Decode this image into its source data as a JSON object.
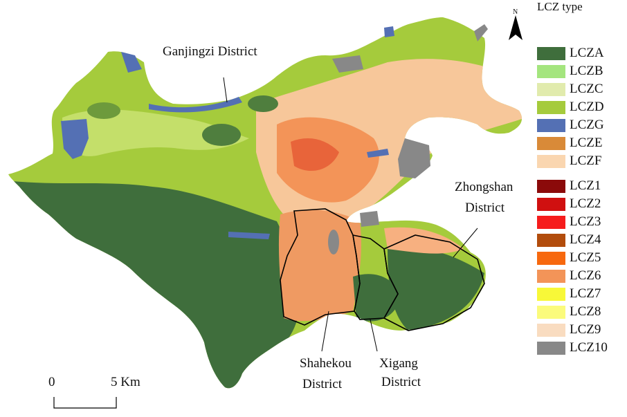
{
  "legend": {
    "title": "LCZ type",
    "items": [
      {
        "label": "LCZA",
        "color": "#3f6e3c"
      },
      {
        "label": "LCZB",
        "color": "#a4e57e"
      },
      {
        "label": "LCZC",
        "color": "#e1ebad"
      },
      {
        "label": "LCZD",
        "color": "#a5cb3c"
      },
      {
        "label": "LCZG",
        "color": "#5470b4"
      },
      {
        "label": "LCZE",
        "color": "#d98a38"
      },
      {
        "label": "LCZF",
        "color": "#fad6b0"
      },
      {
        "label": "LCZ1",
        "color": "#8b0a0a"
      },
      {
        "label": "LCZ2",
        "color": "#d01010"
      },
      {
        "label": "LCZ3",
        "color": "#f61c1c"
      },
      {
        "label": "LCZ4",
        "color": "#b24c0c"
      },
      {
        "label": "LCZ5",
        "color": "#f7680e"
      },
      {
        "label": "LCZ6",
        "color": "#f39458"
      },
      {
        "label": "LCZ7",
        "color": "#f8f838"
      },
      {
        "label": "LCZ8",
        "color": "#fbfb7c"
      },
      {
        "label": "LCZ9",
        "color": "#f9dcc0"
      },
      {
        "label": "LCZ10",
        "color": "#888888"
      }
    ]
  },
  "districts": {
    "ganjingzi": "Ganjingzi District",
    "zhongshan_line1": "Zhongshan",
    "zhongshan_line2": "District",
    "shahekou_line1": "Shahekou",
    "shahekou_line2": "District",
    "xigang_line1": "Xigang",
    "xigang_line2": "District"
  },
  "north_arrow": {
    "letter": "N"
  },
  "scale_bar": {
    "start": "0",
    "end": "5 Km"
  }
}
